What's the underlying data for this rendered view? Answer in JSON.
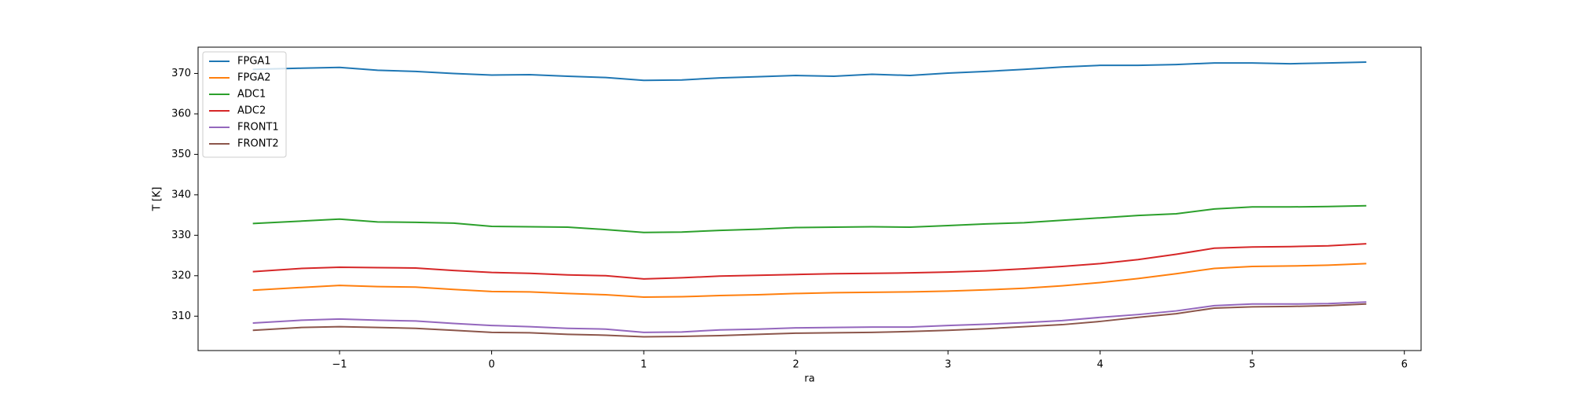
{
  "chart_data": {
    "type": "line",
    "x_label": "ra",
    "y_label": "T [K]",
    "x": [
      -1.57,
      -1.25,
      -1.0,
      -0.75,
      -0.5,
      -0.25,
      0,
      0.25,
      0.5,
      0.75,
      1.0,
      1.25,
      1.5,
      1.75,
      2.0,
      2.25,
      2.5,
      2.75,
      3.0,
      3.25,
      3.5,
      3.75,
      4.0,
      4.25,
      4.5,
      4.75,
      5.0,
      5.25,
      5.5,
      5.75
    ],
    "series": [
      {
        "name": "FPGA1",
        "color": "#1f77b4",
        "values": [
          371.0,
          371.3,
          371.5,
          370.8,
          370.5,
          370.0,
          369.6,
          369.7,
          369.3,
          369.0,
          368.3,
          368.4,
          368.9,
          369.2,
          369.5,
          369.3,
          369.8,
          369.5,
          370.1,
          370.5,
          371.0,
          371.6,
          372.0,
          372.0,
          372.2,
          372.6,
          372.6,
          372.4,
          372.6,
          372.8
        ]
      },
      {
        "name": "FPGA2",
        "color": "#ff7f0e",
        "values": [
          316.4,
          317.1,
          317.6,
          317.3,
          317.2,
          316.6,
          316.1,
          316.0,
          315.6,
          315.3,
          314.7,
          314.8,
          315.1,
          315.3,
          315.6,
          315.8,
          315.9,
          316.0,
          316.2,
          316.5,
          316.9,
          317.5,
          318.3,
          319.3,
          320.5,
          321.8,
          322.3,
          322.4,
          322.6,
          323.0
        ]
      },
      {
        "name": "ADC1",
        "color": "#2ca02c",
        "values": [
          332.9,
          333.5,
          334.0,
          333.3,
          333.2,
          333.0,
          332.2,
          332.1,
          332.0,
          331.4,
          330.7,
          330.8,
          331.2,
          331.5,
          331.9,
          332.0,
          332.1,
          332.0,
          332.4,
          332.8,
          333.1,
          333.7,
          334.3,
          334.9,
          335.3,
          336.5,
          337.0,
          337.0,
          337.1,
          337.3
        ]
      },
      {
        "name": "ADC2",
        "color": "#d62728",
        "values": [
          321.0,
          321.8,
          322.1,
          322.0,
          321.9,
          321.3,
          320.8,
          320.6,
          320.2,
          320.0,
          319.2,
          319.5,
          319.9,
          320.1,
          320.3,
          320.5,
          320.6,
          320.7,
          320.9,
          321.2,
          321.7,
          322.3,
          323.0,
          324.0,
          325.3,
          326.8,
          327.1,
          327.2,
          327.4,
          327.9
        ]
      },
      {
        "name": "FRONT1",
        "color": "#9467bd",
        "values": [
          308.3,
          309.0,
          309.3,
          309.0,
          308.8,
          308.2,
          307.7,
          307.4,
          307.0,
          306.8,
          306.0,
          306.1,
          306.6,
          306.8,
          307.1,
          307.2,
          307.3,
          307.3,
          307.7,
          308.0,
          308.4,
          308.9,
          309.7,
          310.4,
          311.3,
          312.6,
          313.0,
          313.0,
          313.1,
          313.5
        ]
      },
      {
        "name": "FRONT2",
        "color": "#8c564b",
        "values": [
          306.5,
          307.2,
          307.4,
          307.2,
          307.0,
          306.5,
          306.0,
          305.9,
          305.5,
          305.3,
          304.9,
          305.0,
          305.2,
          305.5,
          305.8,
          305.9,
          306.0,
          306.2,
          306.5,
          306.9,
          307.4,
          307.9,
          308.7,
          309.7,
          310.6,
          312.0,
          312.3,
          312.4,
          312.6,
          313.0
        ]
      }
    ],
    "xlim": [
      -1.93,
      6.11
    ],
    "ylim": [
      301.5,
      376.5
    ],
    "xticks": [
      {
        "value": -1,
        "label": "−1"
      },
      0,
      1,
      2,
      3,
      4,
      5,
      6
    ],
    "yticks": [
      310,
      320,
      330,
      340,
      350,
      360,
      370
    ],
    "legend": "upper left",
    "grid": false
  }
}
